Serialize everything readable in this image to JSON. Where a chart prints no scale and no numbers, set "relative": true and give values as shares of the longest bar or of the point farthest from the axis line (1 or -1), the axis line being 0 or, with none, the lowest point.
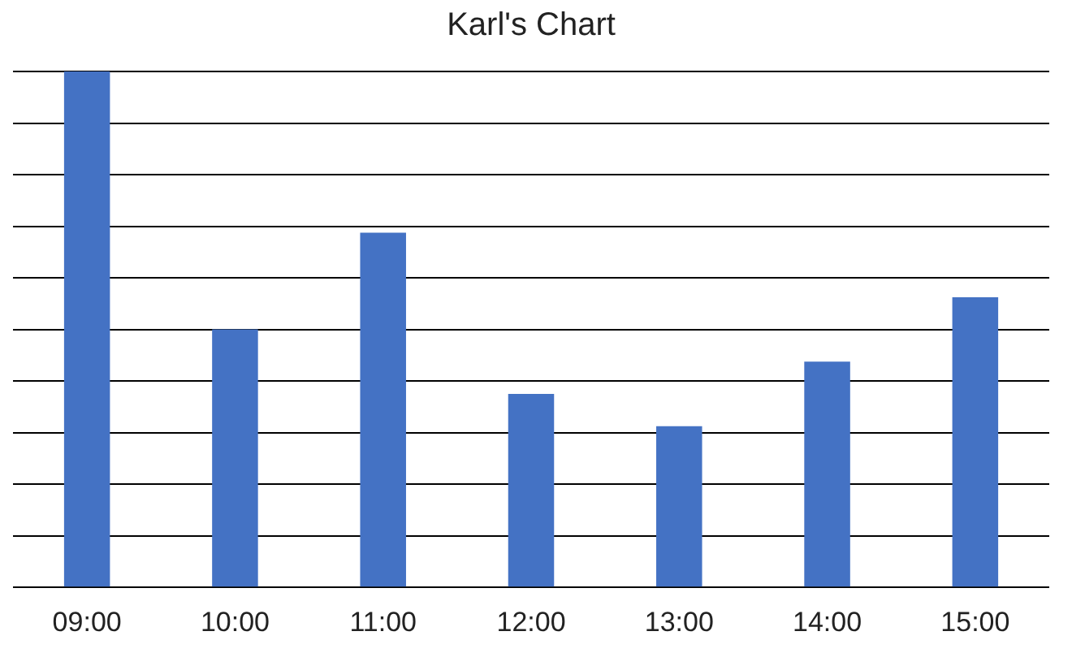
{
  "chart_data": {
    "type": "bar",
    "title": "Karl's Chart",
    "categories": [
      "09:00",
      "10:00",
      "11:00",
      "12:00",
      "13:00",
      "14:00",
      "15:00"
    ],
    "values": [
      1,
      0.5,
      0.6875,
      0.375,
      0.3125,
      0.4375,
      0.5625
    ],
    "color": "#4472c4",
    "relative": true,
    "grid": "y",
    "legend": false
  }
}
